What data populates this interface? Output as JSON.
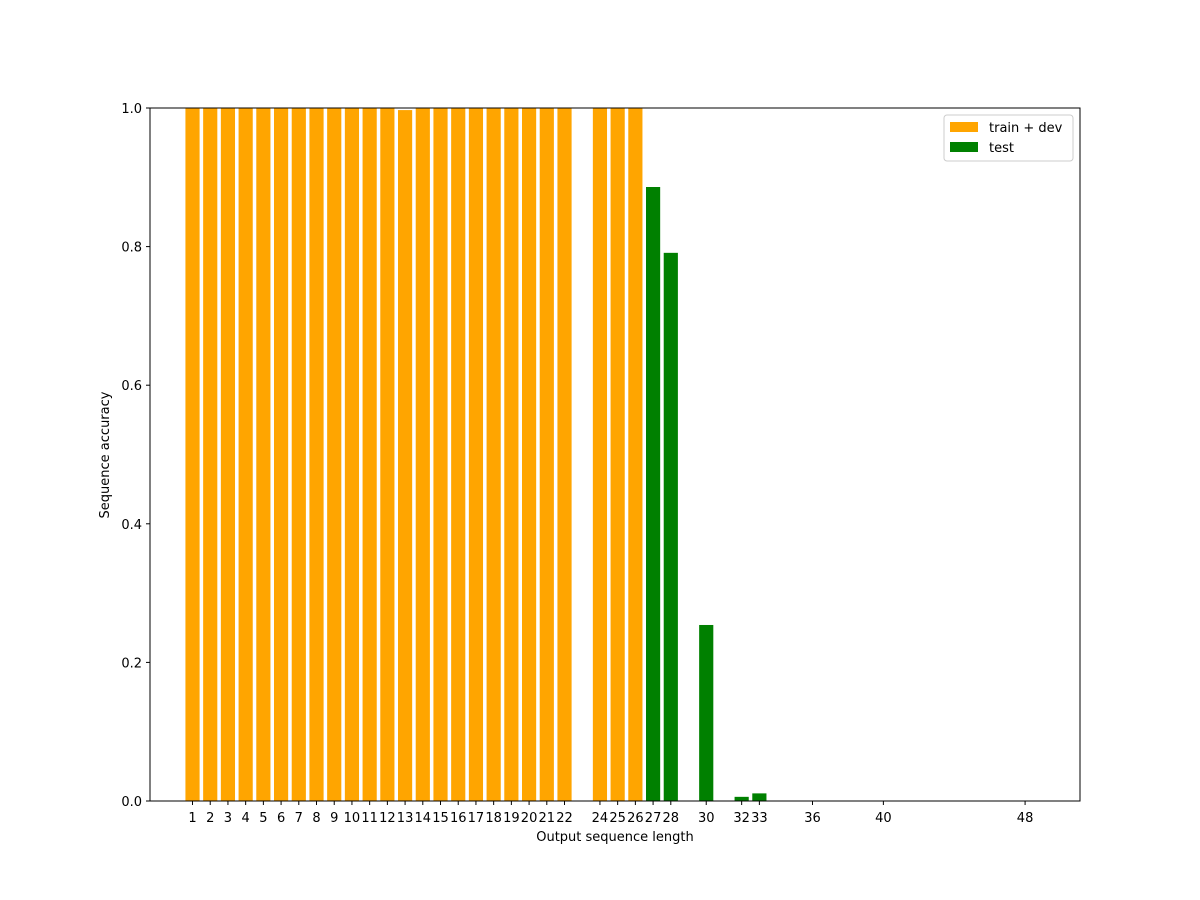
{
  "chart_data": {
    "type": "bar",
    "xlabel": "Output sequence length",
    "ylabel": "Sequence accuracy",
    "xlim": [
      -1.4,
      51.1
    ],
    "ylim": [
      0,
      1.0
    ],
    "x_ticks": [
      1,
      2,
      3,
      4,
      5,
      6,
      7,
      8,
      9,
      10,
      11,
      12,
      13,
      14,
      15,
      16,
      17,
      18,
      19,
      20,
      21,
      22,
      24,
      25,
      26,
      27,
      28,
      30,
      32,
      33,
      36,
      40,
      48
    ],
    "y_ticks": [
      {
        "value": 0.0,
        "label": "0.0"
      },
      {
        "value": 0.2,
        "label": "0.2"
      },
      {
        "value": 0.4,
        "label": "0.4"
      },
      {
        "value": 0.6,
        "label": "0.6"
      },
      {
        "value": 0.8,
        "label": "0.8"
      },
      {
        "value": 1.0,
        "label": "1.0"
      }
    ],
    "legend_position": "top-right",
    "grid": false,
    "series": [
      {
        "name": "train + dev",
        "color": "#ffa500",
        "x": [
          1,
          2,
          3,
          4,
          5,
          6,
          7,
          8,
          9,
          10,
          11,
          12,
          13,
          14,
          15,
          16,
          17,
          18,
          19,
          20,
          21,
          22,
          24,
          25,
          26
        ],
        "values": [
          1,
          1,
          1,
          1,
          1,
          1,
          1,
          1,
          1,
          1,
          1,
          1,
          0.997,
          1,
          1,
          1,
          1,
          1,
          1,
          1,
          1,
          1,
          1,
          1,
          1
        ]
      },
      {
        "name": "test",
        "color": "#008000",
        "x": [
          27,
          28,
          30,
          32,
          33,
          36,
          40,
          48
        ],
        "values": [
          0.886,
          0.791,
          0.254,
          0.006,
          0.011,
          0,
          0,
          0
        ]
      }
    ]
  }
}
